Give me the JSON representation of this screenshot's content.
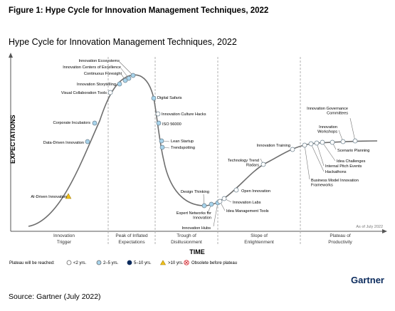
{
  "figure_title": "Figure 1: Hype Cycle for Innovation Management Techniques, 2022",
  "chart_title": "Hype Cycle for Innovation Management Techniques, 2022",
  "y_axis_label": "EXPECTATIONS",
  "x_axis_label": "TIME",
  "as_of": "As of July 2022",
  "phases": [
    {
      "line1": "Innovation",
      "line2": "Trigger"
    },
    {
      "line1": "Peak of Inflated",
      "line2": "Expectations"
    },
    {
      "line1": "Trough of",
      "line2": "Disillusionment"
    },
    {
      "line1": "Slope of",
      "line2": "Enlightenment"
    },
    {
      "line1": "Plateau of",
      "line2": "Productivity"
    }
  ],
  "legend": {
    "title": "Plateau will be reached:",
    "items": [
      {
        "label": "<2 yrs.",
        "marker": "circle",
        "color": "#ffffff"
      },
      {
        "label": "2–5 yrs.",
        "marker": "circle",
        "color": "#a8d4ec"
      },
      {
        "label": "5–10 yrs.",
        "marker": "circle",
        "color": "#0a2a5c"
      },
      {
        "label": ">10 yrs.",
        "marker": "triangle",
        "color": "#f2c21b"
      },
      {
        "label": "Obsolete before plateau",
        "marker": "x-circle",
        "color": "#d3262e"
      }
    ]
  },
  "brand": "Gartner",
  "source": "Source: Gartner (July 2022)",
  "technologies": [
    {
      "name": "AI-Driven Innovation",
      "plateau": ">10 yrs."
    },
    {
      "name": "Data-Driven Innovation",
      "plateau": "2–5 yrs."
    },
    {
      "name": "Corporate Incubators",
      "plateau": "2–5 yrs."
    },
    {
      "name": "Visual Collaboration Tools",
      "plateau": "<2 yrs."
    },
    {
      "name": "Innovation Storytelling",
      "plateau": "2–5 yrs."
    },
    {
      "name": "Continuous Foresight",
      "plateau": "2–5 yrs."
    },
    {
      "name": "Innovation Centers of Excellence",
      "plateau": "2–5 yrs."
    },
    {
      "name": "Innovation Ecosystems",
      "plateau": "2–5 yrs."
    },
    {
      "name": "Digital Safaris",
      "plateau": "2–5 yrs."
    },
    {
      "name": "Innovation Culture Hacks",
      "plateau": "<2 yrs."
    },
    {
      "name": "ISO 56000",
      "plateau": "2–5 yrs."
    },
    {
      "name": "Lean Startup",
      "plateau": "2–5 yrs."
    },
    {
      "name": "Trendspotting",
      "plateau": "2–5 yrs."
    },
    {
      "name": "Design Thinking",
      "plateau": "2–5 yrs."
    },
    {
      "name": "Expert Networks for Innovation",
      "plateau": "2–5 yrs."
    },
    {
      "name": "Innovation Hubs",
      "plateau": "2–5 yrs."
    },
    {
      "name": "Idea Management Tools",
      "plateau": "<2 yrs."
    },
    {
      "name": "Innovation Labs",
      "plateau": "<2 yrs."
    },
    {
      "name": "Open Innovation",
      "plateau": "<2 yrs."
    },
    {
      "name": "Technology Trend Radars",
      "plateau": "<2 yrs."
    },
    {
      "name": "Innovation Training",
      "plateau": "<2 yrs."
    },
    {
      "name": "Business Model Innovation Frameworks",
      "plateau": "<2 yrs."
    },
    {
      "name": "Hackathons",
      "plateau": "<2 yrs."
    },
    {
      "name": "Internal Pitch Events",
      "plateau": "<2 yrs."
    },
    {
      "name": "Idea Challenges",
      "plateau": "<2 yrs."
    },
    {
      "name": "Scenario Planning",
      "plateau": "<2 yrs."
    },
    {
      "name": "Innovation Workshops",
      "plateau": "<2 yrs."
    },
    {
      "name": "Innovation Governance Committees",
      "plateau": "<2 yrs."
    }
  ]
}
